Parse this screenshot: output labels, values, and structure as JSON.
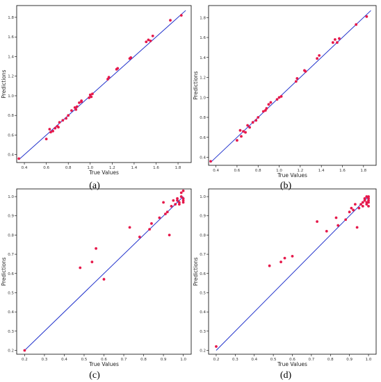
{
  "figure": {
    "panel_labels": [
      "(a)",
      "(b)",
      "(c)",
      "(d)"
    ]
  },
  "chart_data": [
    {
      "type": "scatter",
      "panel": "(a)",
      "title": "",
      "xlabel": "True Values",
      "ylabel": "Predictions",
      "xlim": [
        0.33,
        1.92
      ],
      "ylim": [
        0.32,
        1.92
      ],
      "xticks": [
        0.4,
        0.6,
        0.8,
        1.0,
        1.2,
        1.4,
        1.6,
        1.8
      ],
      "yticks": [
        0.4,
        0.6,
        0.8,
        1.0,
        1.2,
        1.4,
        1.6,
        1.8
      ],
      "ideal_line": [
        0.35,
        1.87
      ],
      "point_color": "#e6194b",
      "line_color": "#2233cc",
      "x": [
        0.35,
        0.6,
        0.63,
        0.64,
        0.66,
        0.68,
        0.7,
        0.71,
        0.72,
        0.75,
        0.78,
        0.8,
        0.83,
        0.86,
        0.87,
        0.88,
        0.9,
        0.92,
        0.92,
        0.99,
        1.0,
        1.01,
        1.02,
        1.16,
        1.17,
        1.24,
        1.25,
        1.36,
        1.37,
        1.51,
        1.53,
        1.55,
        1.57,
        1.73,
        1.83
      ],
      "y": [
        0.36,
        0.56,
        0.66,
        0.63,
        0.64,
        0.67,
        0.69,
        0.68,
        0.73,
        0.75,
        0.77,
        0.8,
        0.85,
        0.88,
        0.86,
        0.89,
        0.93,
        0.95,
        0.94,
        0.98,
        1.01,
        0.99,
        1.02,
        1.17,
        1.19,
        1.27,
        1.28,
        1.38,
        1.39,
        1.55,
        1.57,
        1.56,
        1.61,
        1.77,
        1.82
      ]
    },
    {
      "type": "scatter",
      "panel": "(b)",
      "title": "",
      "xlabel": "True Values",
      "ylabel": "Predictions",
      "xlim": [
        0.33,
        1.92
      ],
      "ylim": [
        0.32,
        1.92
      ],
      "xticks": [
        0.4,
        0.6,
        0.8,
        1.0,
        1.2,
        1.4,
        1.6,
        1.8
      ],
      "yticks": [
        0.4,
        0.6,
        0.8,
        1.0,
        1.2,
        1.4,
        1.6,
        1.8
      ],
      "ideal_line": [
        0.35,
        1.87
      ],
      "point_color": "#e6194b",
      "line_color": "#2233cc",
      "x": [
        0.35,
        0.6,
        0.63,
        0.64,
        0.66,
        0.68,
        0.7,
        0.72,
        0.75,
        0.78,
        0.8,
        0.85,
        0.87,
        0.88,
        0.9,
        0.92,
        0.98,
        1.0,
        1.02,
        1.16,
        1.17,
        1.24,
        1.25,
        1.36,
        1.38,
        1.51,
        1.53,
        1.55,
        1.57,
        1.73,
        1.83
      ],
      "y": [
        0.36,
        0.57,
        0.67,
        0.61,
        0.66,
        0.65,
        0.72,
        0.7,
        0.75,
        0.77,
        0.8,
        0.86,
        0.87,
        0.89,
        0.93,
        0.95,
        0.98,
        1.0,
        1.01,
        1.16,
        1.19,
        1.27,
        1.26,
        1.39,
        1.42,
        1.55,
        1.58,
        1.55,
        1.59,
        1.73,
        1.81
      ]
    },
    {
      "type": "scatter",
      "panel": "(c)",
      "title": "",
      "xlabel": "True Values",
      "ylabel": "Predictions",
      "xlim": [
        0.16,
        1.04
      ],
      "ylim": [
        0.18,
        1.04
      ],
      "xticks": [
        0.2,
        0.3,
        0.4,
        0.5,
        0.6,
        0.7,
        0.8,
        0.9,
        1.0
      ],
      "yticks": [
        0.2,
        0.3,
        0.4,
        0.5,
        0.6,
        0.7,
        0.8,
        0.9,
        1.0
      ],
      "ideal_line": [
        0.2,
        1.0
      ],
      "point_color": "#e6194b",
      "line_color": "#2233cc",
      "x": [
        0.2,
        0.48,
        0.54,
        0.56,
        0.6,
        0.73,
        0.78,
        0.83,
        0.84,
        0.88,
        0.9,
        0.91,
        0.92,
        0.93,
        0.94,
        0.95,
        0.96,
        0.97,
        0.97,
        0.98,
        0.98,
        0.99,
        0.99,
        1.0,
        1.0,
        1.0,
        1.0
      ],
      "y": [
        0.2,
        0.63,
        0.66,
        0.73,
        0.57,
        0.84,
        0.79,
        0.83,
        0.86,
        0.89,
        0.97,
        0.91,
        0.92,
        0.8,
        0.95,
        0.98,
        0.96,
        0.98,
        0.99,
        0.97,
        0.96,
        1.0,
        1.02,
        0.97,
        1.03,
        0.98,
        0.99
      ]
    },
    {
      "type": "scatter",
      "panel": "(d)",
      "title": "",
      "xlabel": "True Values",
      "ylabel": "Predictions",
      "xlim": [
        0.16,
        1.04
      ],
      "ylim": [
        0.18,
        1.04
      ],
      "xticks": [
        0.2,
        0.3,
        0.4,
        0.5,
        0.6,
        0.7,
        0.8,
        0.9,
        1.0
      ],
      "yticks": [
        0.2,
        0.3,
        0.4,
        0.5,
        0.6,
        0.7,
        0.8,
        0.9,
        1.0
      ],
      "ideal_line": [
        0.2,
        1.0
      ],
      "point_color": "#e6194b",
      "line_color": "#2233cc",
      "x": [
        0.2,
        0.48,
        0.54,
        0.56,
        0.6,
        0.73,
        0.78,
        0.83,
        0.84,
        0.88,
        0.9,
        0.91,
        0.92,
        0.93,
        0.94,
        0.95,
        0.96,
        0.97,
        0.97,
        0.98,
        0.98,
        0.99,
        0.99,
        0.99,
        1.0,
        1.0,
        1.0,
        1.0,
        1.0
      ],
      "y": [
        0.22,
        0.64,
        0.66,
        0.68,
        0.69,
        0.87,
        0.82,
        0.89,
        0.85,
        0.88,
        0.92,
        0.94,
        0.93,
        0.96,
        0.84,
        0.94,
        0.96,
        0.97,
        0.95,
        0.98,
        0.99,
        0.97,
        1.0,
        0.96,
        0.99,
        1.0,
        0.98,
        0.95,
        0.97
      ]
    }
  ]
}
